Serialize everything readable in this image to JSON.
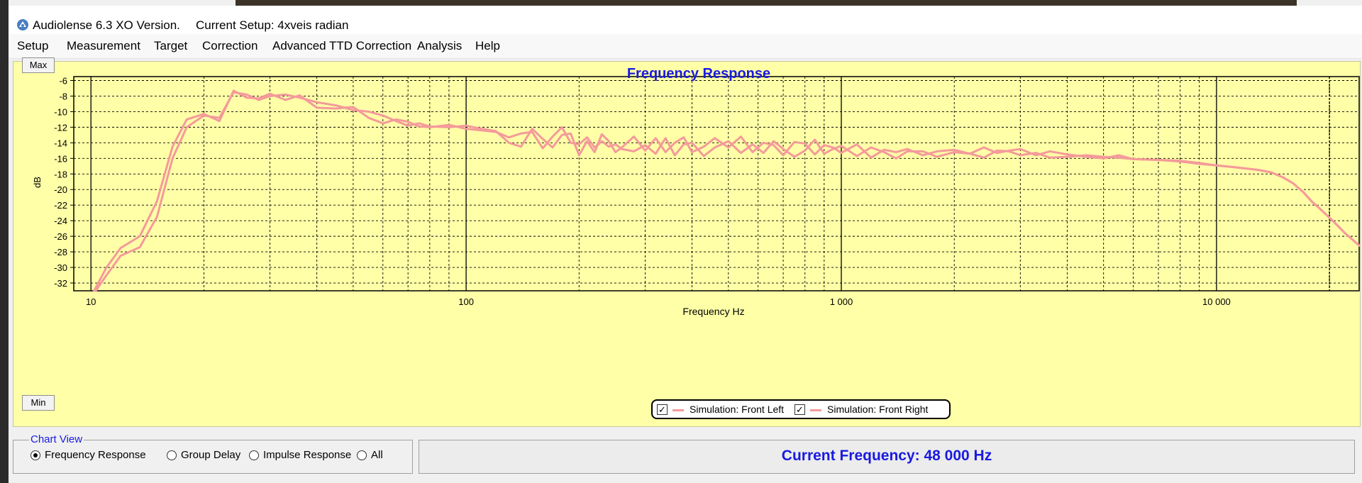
{
  "window": {
    "title": "Audiolense 6.3 XO Version.",
    "setup": "Current Setup: 4xveis radian"
  },
  "menu": [
    "Setup",
    "Measurement",
    "Target",
    "Correction",
    "Advanced TTD Correction",
    "Analysis",
    "Help"
  ],
  "buttons": {
    "max": "Max",
    "min": "Min"
  },
  "icons": {
    "app": "audiolense-logo-icon"
  },
  "colors": {
    "plot_bg": "#ffffa8",
    "title": "#1a1ae0",
    "series_left": "#f49a9a",
    "series_right": "#f49a9a"
  },
  "chart_data": {
    "type": "line",
    "title": "Frequency Response",
    "xlabel": "Frequency Hz",
    "ylabel": "dB",
    "xscale": "log",
    "xlim": [
      9,
      24000
    ],
    "ylim": [
      -33,
      -5.5
    ],
    "xticks": [
      10,
      100,
      1000,
      10000
    ],
    "xtick_labels": [
      "10",
      "100",
      "1 000",
      "10 000"
    ],
    "yticks": [
      -6,
      -8,
      -10,
      -12,
      -14,
      -16,
      -18,
      -20,
      -22,
      -24,
      -26,
      -28,
      -30,
      -32
    ],
    "grid": true,
    "legend_position": "bottom-center",
    "series": [
      {
        "name": "Simulation: Front Left",
        "x": [
          10.3,
          11,
          12,
          13.5,
          15,
          16.5,
          18,
          20,
          22,
          24,
          26,
          28,
          30,
          33,
          36,
          40,
          45,
          50,
          55,
          60,
          65,
          70,
          75,
          80,
          90,
          100,
          110,
          120,
          130,
          140,
          150,
          160,
          170,
          180,
          190,
          200,
          210,
          220,
          230,
          240,
          250,
          260,
          280,
          300,
          320,
          340,
          360,
          380,
          400,
          430,
          460,
          500,
          540,
          580,
          620,
          660,
          700,
          750,
          800,
          850,
          900,
          950,
          1000,
          1100,
          1200,
          1300,
          1400,
          1500,
          1650,
          1800,
          2000,
          2200,
          2400,
          2600,
          2800,
          3000,
          3300,
          3600,
          4000,
          4500,
          5000,
          5500,
          6000,
          7000,
          8000,
          9000,
          10000,
          11000,
          12000,
          13000,
          14000,
          15000,
          16000,
          17000,
          18000,
          19000,
          20000,
          21000,
          22000,
          23000,
          24000
        ],
        "values": [
          -33,
          -31,
          -28.5,
          -27.4,
          -23.5,
          -16,
          -12,
          -10.5,
          -10.8,
          -7.5,
          -7.8,
          -8.5,
          -8,
          -7.8,
          -8.2,
          -8.8,
          -9.2,
          -9.8,
          -10,
          -10.5,
          -11.2,
          -11.8,
          -11.5,
          -11.9,
          -12,
          -11.8,
          -12.2,
          -12.5,
          -14,
          -14.5,
          -12.2,
          -13.5,
          -14.6,
          -13,
          -12.8,
          -15.6,
          -13.8,
          -15.2,
          -12.9,
          -13.8,
          -15.2,
          -14.6,
          -13.2,
          -15,
          -13.4,
          -15.2,
          -14,
          -13.3,
          -15.2,
          -14.5,
          -13.4,
          -14.6,
          -13.2,
          -15.2,
          -14,
          -14.3,
          -15.6,
          -13.9,
          -14.1,
          -15.5,
          -14.3,
          -14.6,
          -15.3,
          -14.2,
          -15.9,
          -14.9,
          -15.2,
          -14.8,
          -15.6,
          -15.1,
          -14.9,
          -15.4,
          -14.6,
          -15.3,
          -15,
          -14.8,
          -15.6,
          -15.1,
          -15.5,
          -15.8,
          -16,
          -15.6,
          -16.1,
          -16.2,
          -16.4,
          -16.7,
          -16.9,
          -17.1,
          -17.3,
          -17.5,
          -17.8,
          -18.4,
          -19.2,
          -20.3,
          -21.6,
          -22.6,
          -23.6,
          -24.6,
          -25.6,
          -26.4,
          -27.2
        ]
      },
      {
        "name": "Simulation: Front Right",
        "x": [
          10.2,
          11,
          12,
          13.5,
          15,
          16.5,
          18,
          20,
          22,
          24,
          26,
          28,
          30,
          33,
          36,
          40,
          45,
          50,
          55,
          60,
          65,
          70,
          75,
          80,
          90,
          100,
          110,
          120,
          130,
          140,
          150,
          160,
          170,
          180,
          190,
          200,
          210,
          220,
          230,
          240,
          250,
          260,
          280,
          300,
          320,
          340,
          360,
          380,
          400,
          430,
          460,
          500,
          540,
          580,
          620,
          660,
          700,
          750,
          800,
          850,
          900,
          950,
          1000,
          1100,
          1200,
          1300,
          1400,
          1500,
          1650,
          1800,
          2000,
          2200,
          2400,
          2600,
          2800,
          3000,
          3300,
          3600,
          4000,
          4500,
          5000,
          5500,
          6000,
          7000,
          8000,
          9000,
          10000,
          11000,
          12000,
          13000,
          14000,
          15000,
          16000,
          17000,
          18000,
          19000,
          20000,
          21000,
          22000,
          23000,
          24000
        ],
        "values": [
          -33,
          -30,
          -27.5,
          -26,
          -21.5,
          -14.5,
          -11,
          -10.3,
          -11.2,
          -7.3,
          -8.2,
          -8.3,
          -7.7,
          -8.5,
          -7.9,
          -9.5,
          -9.6,
          -9.4,
          -10.8,
          -11.5,
          -11,
          -11.3,
          -11.9,
          -12,
          -11.7,
          -12.2,
          -12.4,
          -12.6,
          -13.3,
          -12.8,
          -12.6,
          -14.7,
          -13.2,
          -12,
          -14,
          -14.2,
          -13.3,
          -14.6,
          -13.8,
          -14.5,
          -14.2,
          -14.8,
          -15.1,
          -14.3,
          -15.4,
          -13.4,
          -15.6,
          -14.2,
          -14,
          -15.7,
          -14.6,
          -13.8,
          -15.3,
          -14.2,
          -15.3,
          -13.8,
          -14.8,
          -15.8,
          -15,
          -13.6,
          -15.4,
          -14.8,
          -14.4,
          -15.7,
          -14.6,
          -15.2,
          -16,
          -15.1,
          -15.1,
          -15.8,
          -15.2,
          -15.4,
          -15.9,
          -15,
          -15.1,
          -15.6,
          -15.3,
          -15.9,
          -15.8,
          -15.6,
          -15.8,
          -15.9,
          -16.1,
          -16.2,
          -16.3,
          -16.6,
          -16.9,
          -17.1,
          -17.3,
          -17.5,
          -17.8,
          -18.4,
          -19.2,
          -20.3,
          -21.6,
          -22.6,
          -23.6,
          -24.6,
          -25.6,
          -26.4,
          -27.2
        ]
      }
    ]
  },
  "chart_view": {
    "title": "Chart View",
    "options": [
      "Frequency Response",
      "Group Delay",
      "Impulse Response",
      "All"
    ],
    "selected": "Frequency Response"
  },
  "status": {
    "current_frequency": "Current Frequency: 48 000 Hz"
  }
}
